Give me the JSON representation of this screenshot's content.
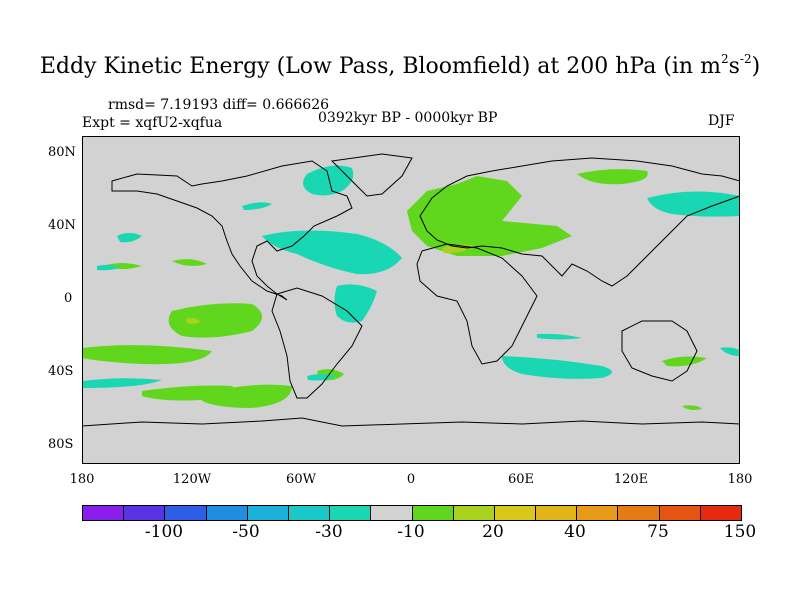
{
  "title_main": "Eddy Kinetic Energy (Low Pass, Bloomfield) at 200 hPa (in m",
  "title_sup1": "2",
  "title_s": "s",
  "title_sup2": "-2",
  "title_close": ")",
  "stats": "rmsd= 7.19193 diff= 0.666626",
  "expt": "Expt = xqfU2-xqfua",
  "period": "0392kyr BP - 0000kyr BP",
  "season": "DJF",
  "map": {
    "lon_range": [
      -180,
      180
    ],
    "lat_range": [
      -90,
      90
    ],
    "lat_labels": [
      "80N",
      "40N",
      "0",
      "40S",
      "80S"
    ],
    "lon_labels": [
      "180",
      "120W",
      "60W",
      "0",
      "60E",
      "120E",
      "180"
    ],
    "colors": {
      "background": "#d2d2d2",
      "neg10": "#1ad7b4",
      "pos20": "#60d71c",
      "pos30": "#a8d21e"
    }
  },
  "colorbar": {
    "colors": [
      "#8a1eec",
      "#5a34e4",
      "#2c5ee6",
      "#1f8ee0",
      "#1ab2d8",
      "#1ac8c8",
      "#1ad7b4",
      "#d2d2d2",
      "#60d71c",
      "#a8d21e",
      "#d8c81a",
      "#e2b418",
      "#e69a16",
      "#e67a14",
      "#e65412",
      "#e62a10"
    ],
    "labels": [
      "-100",
      "-50",
      "-30",
      "-10",
      "20",
      "40",
      "75",
      "150"
    ]
  }
}
